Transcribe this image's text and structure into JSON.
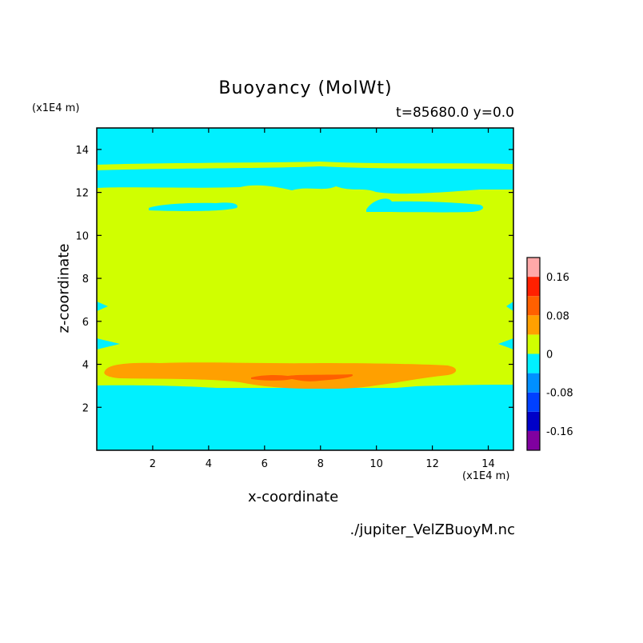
{
  "chart_data": {
    "type": "heatmap",
    "title": "Buoyancy (MolWt)",
    "subtitle": "t=85680.0 y=0.0",
    "xlabel": "x-coordinate",
    "ylabel": "z-coordinate",
    "x_unit": "(x1E4 m)",
    "y_unit": "(x1E4 m)",
    "xlim": [
      0.0,
      14.9
    ],
    "ylim": [
      0.0,
      15.0
    ],
    "x_ticks": [
      2,
      4,
      6,
      8,
      10,
      12,
      14
    ],
    "y_ticks": [
      2,
      4,
      6,
      8,
      10,
      12,
      14
    ],
    "x_tick_labels": [
      "2",
      "4",
      "6",
      "8",
      "10",
      "12",
      "14"
    ],
    "y_tick_labels": [
      "2",
      "4",
      "6",
      "8",
      "10",
      "12",
      "14"
    ],
    "colorbar": {
      "levels": [
        -0.2,
        -0.16,
        -0.12,
        -0.08,
        -0.04,
        0,
        0.04,
        0.08,
        0.12,
        0.16,
        0.2
      ],
      "colors": [
        "#8000a0",
        "#0000c8",
        "#0040ff",
        "#0090ff",
        "#00f0ff",
        "#d0ff00",
        "#ffa000",
        "#ff6000",
        "#ff2000",
        "#ffa8a8"
      ],
      "tick_values": [
        0.16,
        0.08,
        0,
        -0.08,
        -0.16
      ],
      "tick_labels": [
        "0.16",
        "0.08",
        "0",
        "-0.08",
        "-0.16"
      ]
    },
    "regions": [
      {
        "level": "negative (-0.04 to 0)",
        "color": "#00f0ff",
        "z_range": [
          0.0,
          3.0
        ]
      },
      {
        "level": "positive (0 to 0.04)",
        "color": "#d0ff00",
        "z_range": [
          2.7,
          4.0
        ]
      },
      {
        "level": "positive (0.04 to 0.08)",
        "color": "#ffa000",
        "x_range": [
          0.4,
          12.8
        ],
        "z_range": [
          3.0,
          4.0
        ]
      },
      {
        "level": "positive (0.08 to 0.12)",
        "color": "#ff6000",
        "x_range": [
          5.6,
          9.3
        ],
        "z_range": [
          3.2,
          3.5
        ]
      },
      {
        "level": "positive (0 to 0.04)",
        "color": "#d0ff00",
        "z_range": [
          4.0,
          12.0
        ]
      },
      {
        "level": "negative (-0.04 to 0)",
        "color": "#00f0ff",
        "z_range": [
          11.0,
          11.5
        ]
      },
      {
        "level": "negative (-0.04 to 0)",
        "color": "#00f0ff",
        "z_range": [
          12.0,
          15.0
        ]
      },
      {
        "level": "positive (0 to 0.04)",
        "color": "#d0ff00",
        "z_range": [
          13.0,
          13.3
        ]
      }
    ]
  },
  "footer": {
    "filename": "./jupiter_VelZBuoyM.nc"
  }
}
